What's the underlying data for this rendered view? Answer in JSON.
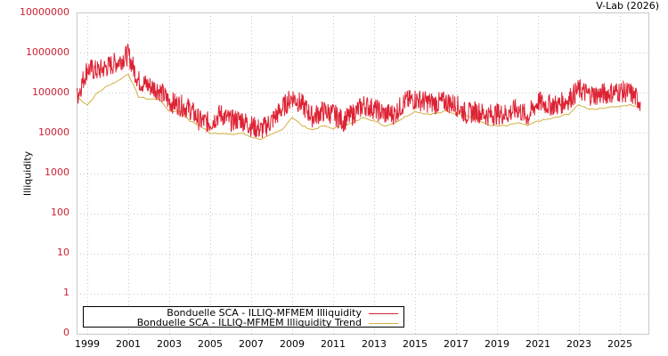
{
  "credit": "V-Lab (2026)",
  "chart_data": {
    "type": "line",
    "title": "",
    "xlabel": "",
    "ylabel": "Illiquidity",
    "yscale": "log",
    "ylim": [
      0,
      10000000
    ],
    "y_ticks": [
      "10000000",
      "1000000",
      "100000",
      "10000",
      "1000",
      "100",
      "10",
      "1",
      "0"
    ],
    "x_ticks": [
      "1999",
      "2001",
      "2003",
      "2005",
      "2007",
      "2009",
      "2011",
      "2013",
      "2015",
      "2017",
      "2019",
      "2021",
      "2023",
      "2025"
    ],
    "grid": true,
    "legend_position": "bottom-left",
    "x": [
      1998.5,
      1999,
      1999.5,
      2000,
      2000.5,
      2001,
      2001.5,
      2002,
      2002.5,
      2003,
      2003.5,
      2004,
      2004.5,
      2005,
      2005.5,
      2006,
      2006.5,
      2007,
      2007.5,
      2008,
      2008.5,
      2009,
      2009.5,
      2010,
      2010.5,
      2011,
      2011.5,
      2012,
      2012.5,
      2013,
      2013.5,
      2014,
      2014.5,
      2015,
      2015.5,
      2016,
      2016.5,
      2017,
      2017.5,
      2018,
      2018.5,
      2019,
      2019.5,
      2020,
      2020.5,
      2021,
      2021.5,
      2022,
      2022.5,
      2023,
      2023.5,
      2024,
      2024.5,
      2025,
      2025.5,
      2026
    ],
    "series": [
      {
        "name": "Bonduelle SCA - ILLIQ-MFMEM Illiquidity",
        "color": "#dd2233",
        "values": [
          80000,
          400000,
          350000,
          450000,
          600000,
          900000,
          200000,
          150000,
          120000,
          60000,
          50000,
          40000,
          20000,
          18000,
          30000,
          20000,
          22000,
          15000,
          12000,
          20000,
          40000,
          80000,
          50000,
          25000,
          35000,
          30000,
          20000,
          30000,
          50000,
          40000,
          30000,
          30000,
          60000,
          70000,
          60000,
          55000,
          60000,
          50000,
          30000,
          35000,
          28000,
          30000,
          30000,
          40000,
          25000,
          60000,
          50000,
          50000,
          70000,
          120000,
          90000,
          90000,
          100000,
          110000,
          100000,
          60000
        ]
      },
      {
        "name": "Bonduelle SCA - ILLIQ-MFMEM Illiquidity Trend",
        "color": "#d4b040",
        "values": [
          80000,
          50000,
          100000,
          150000,
          200000,
          300000,
          80000,
          70000,
          70000,
          35000,
          35000,
          20000,
          15000,
          10000,
          10000,
          9000,
          10000,
          8000,
          7000,
          9000,
          12000,
          25000,
          15000,
          12000,
          15000,
          13000,
          15000,
          18000,
          25000,
          20000,
          15000,
          18000,
          25000,
          35000,
          30000,
          30000,
          35000,
          30000,
          28000,
          22000,
          16000,
          15000,
          15000,
          18000,
          15000,
          20000,
          22000,
          25000,
          30000,
          50000,
          40000,
          40000,
          45000,
          45000,
          50000,
          45000
        ]
      }
    ]
  },
  "legend": {
    "items": [
      {
        "label": "Bonduelle SCA - ILLIQ-MFMEM Illiquidity",
        "color": "#dd2233"
      },
      {
        "label": "Bonduelle SCA - ILLIQ-MFMEM Illiquidity Trend",
        "color": "#d4b040"
      }
    ]
  }
}
